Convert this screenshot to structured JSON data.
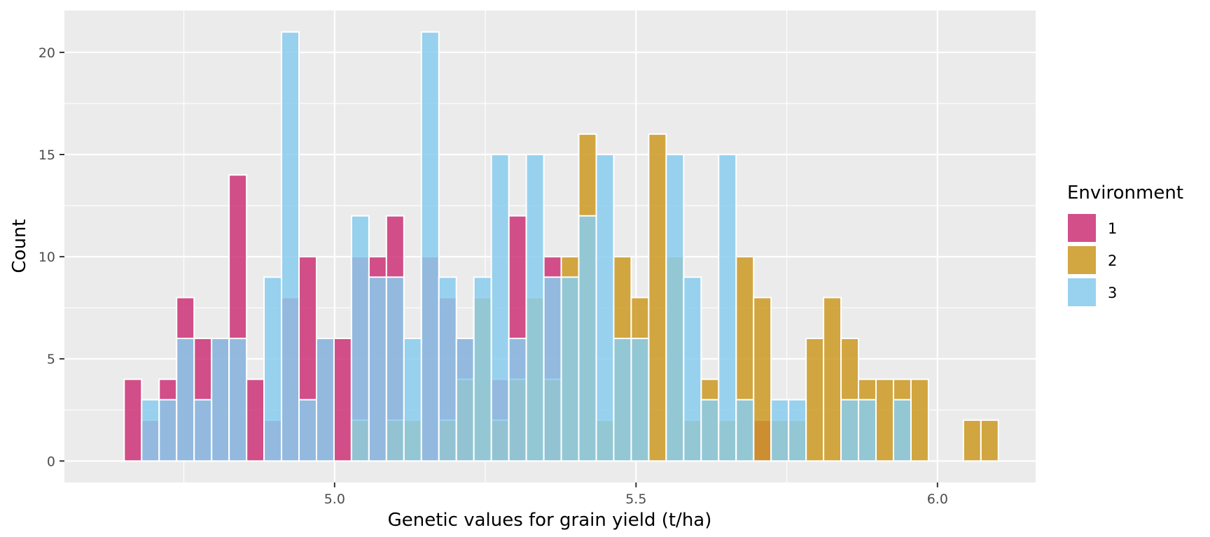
{
  "chart_data": {
    "type": "bar",
    "xlabel": "Genetic values for grain yield (t/ha)",
    "ylabel": "Count",
    "x_ticks": [
      5.0,
      5.5,
      6.0
    ],
    "x_tick_labels": [
      "5.0",
      "5.5",
      "6.0"
    ],
    "y_ticks": [
      0,
      5,
      10,
      15,
      20
    ],
    "y_tick_labels": [
      "0",
      "5",
      "10",
      "15",
      "20"
    ],
    "xlim": [
      4.5519,
      6.1628
    ],
    "ylim": [
      -1.05,
      22.05
    ],
    "bin_width": 0.029,
    "legend": {
      "title": "Environment",
      "position": "right"
    },
    "series": [
      {
        "name": "1",
        "color": "#CC3377",
        "bins": [
          {
            "x": 4.6655,
            "count": 4
          },
          {
            "x": 4.6945,
            "count": 2
          },
          {
            "x": 4.7235,
            "count": 4
          },
          {
            "x": 4.7525,
            "count": 8
          },
          {
            "x": 4.7815,
            "count": 6
          },
          {
            "x": 4.8105,
            "count": 6
          },
          {
            "x": 4.8395,
            "count": 14
          },
          {
            "x": 4.8685,
            "count": 4
          },
          {
            "x": 4.8975,
            "count": 2
          },
          {
            "x": 4.9265,
            "count": 8
          },
          {
            "x": 4.9555,
            "count": 10
          },
          {
            "x": 4.9845,
            "count": 6
          },
          {
            "x": 5.0135,
            "count": 6
          },
          {
            "x": 5.0425,
            "count": 10
          },
          {
            "x": 5.0715,
            "count": 10
          },
          {
            "x": 5.1005,
            "count": 12
          },
          {
            "x": 5.1585,
            "count": 10
          },
          {
            "x": 5.1875,
            "count": 8
          },
          {
            "x": 5.2165,
            "count": 6
          },
          {
            "x": 5.2745,
            "count": 4
          },
          {
            "x": 5.3035,
            "count": 12
          },
          {
            "x": 5.3615,
            "count": 10
          },
          {
            "x": 5.7095,
            "count": 2
          }
        ]
      },
      {
        "name": "2",
        "color": "#CC9922",
        "bins": [
          {
            "x": 5.0425,
            "count": 2
          },
          {
            "x": 5.1005,
            "count": 2
          },
          {
            "x": 5.1295,
            "count": 2
          },
          {
            "x": 5.1875,
            "count": 2
          },
          {
            "x": 5.2165,
            "count": 4
          },
          {
            "x": 5.2455,
            "count": 8
          },
          {
            "x": 5.2745,
            "count": 2
          },
          {
            "x": 5.3035,
            "count": 4
          },
          {
            "x": 5.3325,
            "count": 8
          },
          {
            "x": 5.3615,
            "count": 4
          },
          {
            "x": 5.3905,
            "count": 10
          },
          {
            "x": 5.4195,
            "count": 16
          },
          {
            "x": 5.4485,
            "count": 2
          },
          {
            "x": 5.4775,
            "count": 10
          },
          {
            "x": 5.5065,
            "count": 8
          },
          {
            "x": 5.5355,
            "count": 16
          },
          {
            "x": 5.5645,
            "count": 10
          },
          {
            "x": 5.5935,
            "count": 2
          },
          {
            "x": 5.6225,
            "count": 4
          },
          {
            "x": 5.6515,
            "count": 2
          },
          {
            "x": 5.6805,
            "count": 10
          },
          {
            "x": 5.7095,
            "count": 8
          },
          {
            "x": 5.7385,
            "count": 2
          },
          {
            "x": 5.7675,
            "count": 2
          },
          {
            "x": 5.7965,
            "count": 6
          },
          {
            "x": 5.8255,
            "count": 8
          },
          {
            "x": 5.8545,
            "count": 6
          },
          {
            "x": 5.8835,
            "count": 4
          },
          {
            "x": 5.9125,
            "count": 4
          },
          {
            "x": 5.9415,
            "count": 4
          },
          {
            "x": 5.9705,
            "count": 4
          },
          {
            "x": 6.0575,
            "count": 2
          },
          {
            "x": 6.0865,
            "count": 2
          }
        ]
      },
      {
        "name": "3",
        "color": "#88CCEE",
        "bins": [
          {
            "x": 4.6945,
            "count": 3
          },
          {
            "x": 4.7235,
            "count": 3
          },
          {
            "x": 4.7525,
            "count": 6
          },
          {
            "x": 4.7815,
            "count": 3
          },
          {
            "x": 4.8105,
            "count": 6
          },
          {
            "x": 4.8395,
            "count": 6
          },
          {
            "x": 4.8975,
            "count": 9
          },
          {
            "x": 4.9265,
            "count": 21
          },
          {
            "x": 4.9555,
            "count": 3
          },
          {
            "x": 4.9845,
            "count": 6
          },
          {
            "x": 5.0425,
            "count": 12
          },
          {
            "x": 5.0715,
            "count": 9
          },
          {
            "x": 5.1005,
            "count": 9
          },
          {
            "x": 5.1295,
            "count": 6
          },
          {
            "x": 5.1585,
            "count": 21
          },
          {
            "x": 5.1875,
            "count": 9
          },
          {
            "x": 5.2165,
            "count": 6
          },
          {
            "x": 5.2455,
            "count": 9
          },
          {
            "x": 5.2745,
            "count": 15
          },
          {
            "x": 5.3035,
            "count": 6
          },
          {
            "x": 5.3325,
            "count": 15
          },
          {
            "x": 5.3615,
            "count": 9
          },
          {
            "x": 5.3905,
            "count": 9
          },
          {
            "x": 5.4195,
            "count": 12
          },
          {
            "x": 5.4485,
            "count": 15
          },
          {
            "x": 5.4775,
            "count": 6
          },
          {
            "x": 5.5065,
            "count": 6
          },
          {
            "x": 5.5645,
            "count": 15
          },
          {
            "x": 5.5935,
            "count": 9
          },
          {
            "x": 5.6225,
            "count": 3
          },
          {
            "x": 5.6515,
            "count": 15
          },
          {
            "x": 5.6805,
            "count": 3
          },
          {
            "x": 5.7385,
            "count": 3
          },
          {
            "x": 5.7675,
            "count": 3
          },
          {
            "x": 5.8545,
            "count": 3
          },
          {
            "x": 5.8835,
            "count": 3
          },
          {
            "x": 5.9415,
            "count": 3
          }
        ]
      }
    ]
  }
}
